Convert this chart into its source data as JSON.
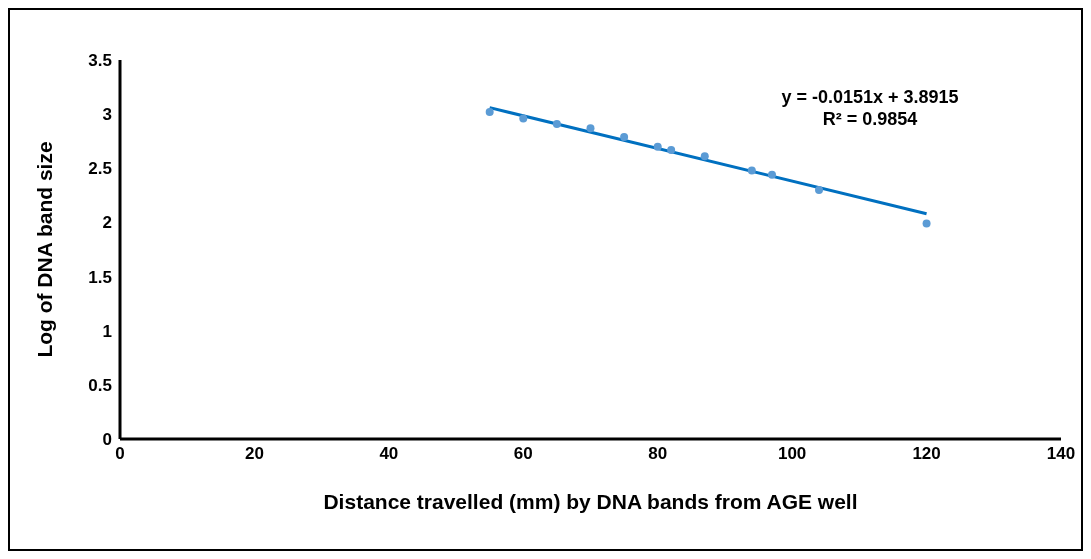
{
  "chart_data": {
    "type": "scatter",
    "xlabel": "Distance travelled (mm) by DNA  bands from AGE well",
    "ylabel": "Log of  DNA  band size",
    "series": [
      {
        "color": "#5b9bd5",
        "marker": "circle",
        "x": [
          55,
          60,
          65,
          70,
          75,
          80,
          82,
          87,
          94,
          97,
          104,
          120
        ],
        "values": [
          3.02,
          2.96,
          2.91,
          2.87,
          2.79,
          2.7,
          2.67,
          2.61,
          2.48,
          2.44,
          2.3,
          1.99
        ]
      },
      {
        "type": "line",
        "color": "#0070c0",
        "marker": "none",
        "x": [
          55,
          120
        ],
        "values": [
          3.06,
          2.08
        ]
      }
    ],
    "xlim": [
      0,
      140
    ],
    "xticks": [
      0,
      20,
      40,
      60,
      80,
      100,
      120,
      140
    ],
    "ylim": [
      0,
      3.5
    ],
    "yticks": [
      0,
      0.5,
      1,
      1.5,
      2,
      2.5,
      3,
      3.5
    ],
    "line_style": "solid",
    "annotations": [
      "y = -0.0151x + 3.8915",
      "R² = 0.9854"
    ]
  }
}
